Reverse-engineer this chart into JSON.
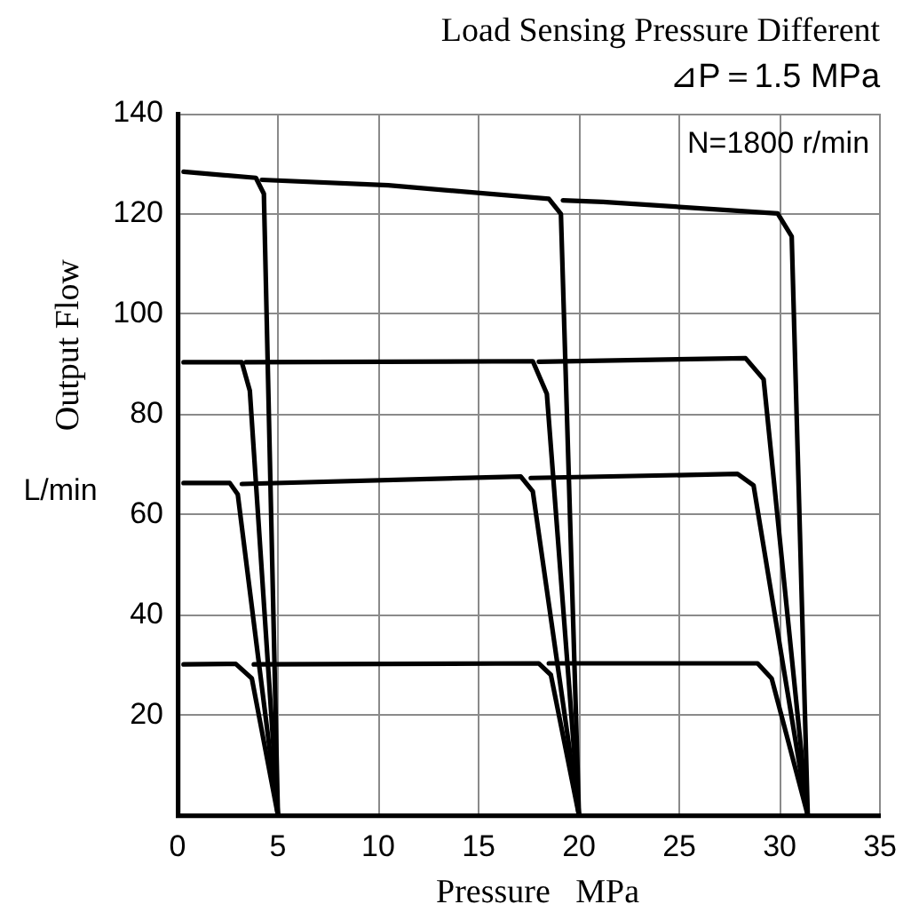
{
  "chart_data": {
    "type": "line",
    "title": "Load Sensing Pressure Different",
    "subtitle": "⊿P＝1.5 MPa",
    "xlabel": "Pressure   MPa",
    "ylabel": "Output Flow",
    "annotations": [
      "N=1800 r/min",
      "L/min"
    ],
    "xlim": [
      0,
      35
    ],
    "xticks": [
      0,
      5,
      10,
      15,
      20,
      25,
      30,
      35
    ],
    "ylim": [
      0,
      140
    ],
    "yticks": [
      20,
      40,
      60,
      80,
      100,
      120,
      140
    ],
    "grid": true,
    "marker": "none",
    "line_style": "solid",
    "series": [
      {
        "color": "#000000",
        "x": [
          0.3,
          3.9,
          4.3,
          5.0
        ],
        "values": [
          128.4,
          127.2,
          124,
          0
        ]
      },
      {
        "color": "#000000",
        "x": [
          4.2,
          10.5,
          18.5,
          19.1,
          20.0
        ],
        "values": [
          126.8,
          125.7,
          123.0,
          120,
          0
        ]
      },
      {
        "color": "#000000",
        "x": [
          19.2,
          21.2,
          29.9,
          30.6,
          31.4
        ],
        "values": [
          122.7,
          122.4,
          120.1,
          115.5,
          0
        ]
      },
      {
        "color": "#000000",
        "x": [
          0.3,
          3.2,
          3.6,
          5.0
        ],
        "values": [
          90.4,
          90.4,
          84.7,
          0
        ]
      },
      {
        "color": "#000000",
        "x": [
          3.4,
          17.7,
          18.4,
          20.0
        ],
        "values": [
          90.4,
          90.6,
          84.1,
          0
        ]
      },
      {
        "color": "#000000",
        "x": [
          18.0,
          28.3,
          29.2,
          31.4
        ],
        "values": [
          90.5,
          91.2,
          87.0,
          0
        ]
      },
      {
        "color": "#000000",
        "x": [
          0.3,
          2.6,
          3.0,
          5.0
        ],
        "values": [
          66.3,
          66.3,
          64.0,
          0
        ]
      },
      {
        "color": "#000000",
        "x": [
          3.2,
          17.1,
          17.7,
          20.0
        ],
        "values": [
          66.1,
          67.6,
          64.6,
          0
        ]
      },
      {
        "color": "#000000",
        "x": [
          17.6,
          27.9,
          28.7,
          31.4
        ],
        "values": [
          67.3,
          68.1,
          65.8,
          0
        ]
      },
      {
        "color": "#000000",
        "x": [
          0.3,
          2.9,
          3.7,
          5.0
        ],
        "values": [
          30.1,
          30.2,
          27.3,
          0
        ]
      },
      {
        "color": "#000000",
        "x": [
          3.8,
          18.0,
          18.6,
          20.0
        ],
        "values": [
          30.1,
          30.3,
          28.0,
          0
        ]
      },
      {
        "color": "#000000",
        "x": [
          18.5,
          28.9,
          29.6,
          31.4
        ],
        "values": [
          30.3,
          30.3,
          27.3,
          0
        ]
      }
    ]
  }
}
